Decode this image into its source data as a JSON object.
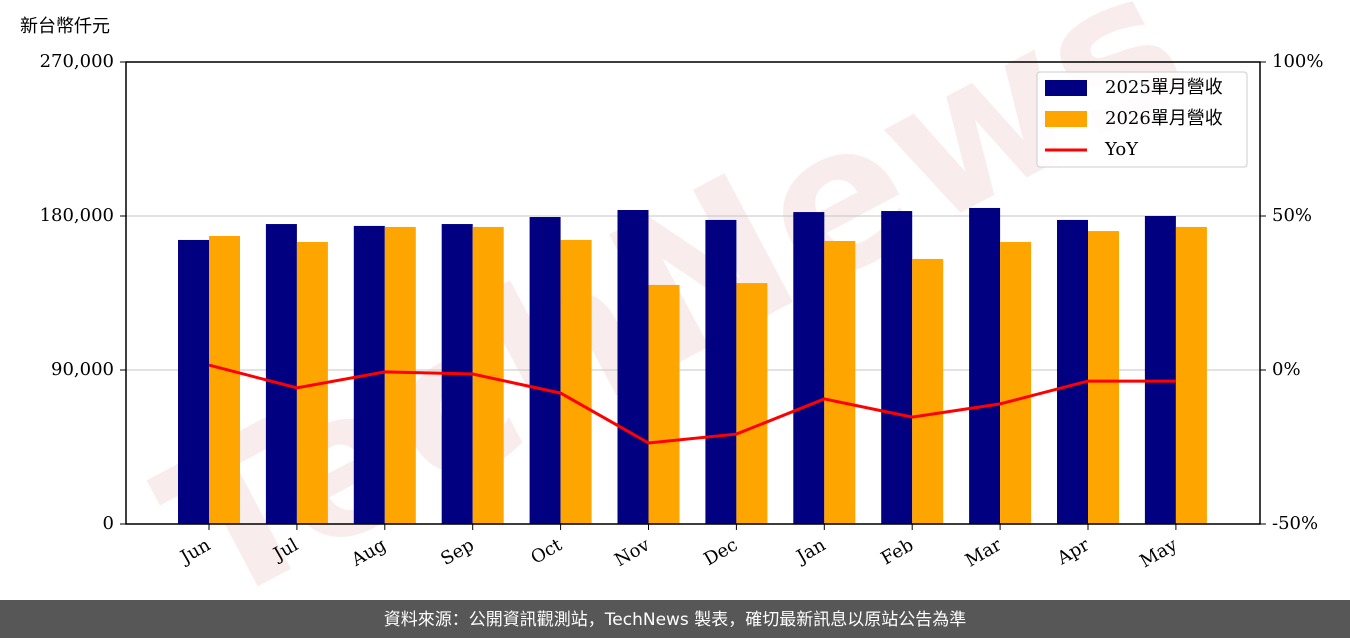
{
  "chart_data": {
    "type": "bar",
    "ylabel": "新台幣仟元",
    "watermark": "TechNews",
    "source": "資料來源：公開資訊觀測站，TechNews 製表，確切最新訊息以原站公告為準",
    "categories": [
      "Jun",
      "Jul",
      "Aug",
      "Sep",
      "Oct",
      "Nov",
      "Dec",
      "Jan",
      "Feb",
      "Mar",
      "Apr",
      "May"
    ],
    "series": [
      {
        "name": "2025單月營收",
        "color": "#000080",
        "values": [
          166000,
          175300,
          174200,
          175300,
          179400,
          183500,
          177700,
          182300,
          182900,
          184700,
          177700,
          180000
        ]
      },
      {
        "name": "2026單月營收",
        "color": "#ffa500",
        "values": [
          168300,
          164800,
          173600,
          173600,
          166000,
          139700,
          140800,
          165400,
          154900,
          164800,
          171200,
          173600
        ]
      },
      {
        "name": "YoY",
        "color": "#ff0000",
        "type": "line",
        "axis": "y2",
        "values": [
          1.6,
          -5.8,
          -0.6,
          -1.3,
          -7.5,
          -23.7,
          -20.8,
          -9.4,
          -15.3,
          -11.0,
          -3.6,
          -3.6
        ]
      }
    ],
    "ylim": [
      0,
      270000
    ],
    "yticks": [
      0,
      {
        "value": 90000,
        "label": "90,000"
      },
      {
        "value": 180000,
        "label": "180,000"
      },
      {
        "value": 270000,
        "label": "270,000"
      }
    ],
    "y2lim": [
      -50,
      100
    ],
    "y2ticks": [
      {
        "value": -50,
        "label": "-50%"
      },
      {
        "value": 0,
        "label": "0%"
      },
      {
        "value": 50,
        "label": "50%"
      },
      {
        "value": 100,
        "label": "100%"
      }
    ],
    "grid": true,
    "legend": "upper right"
  }
}
